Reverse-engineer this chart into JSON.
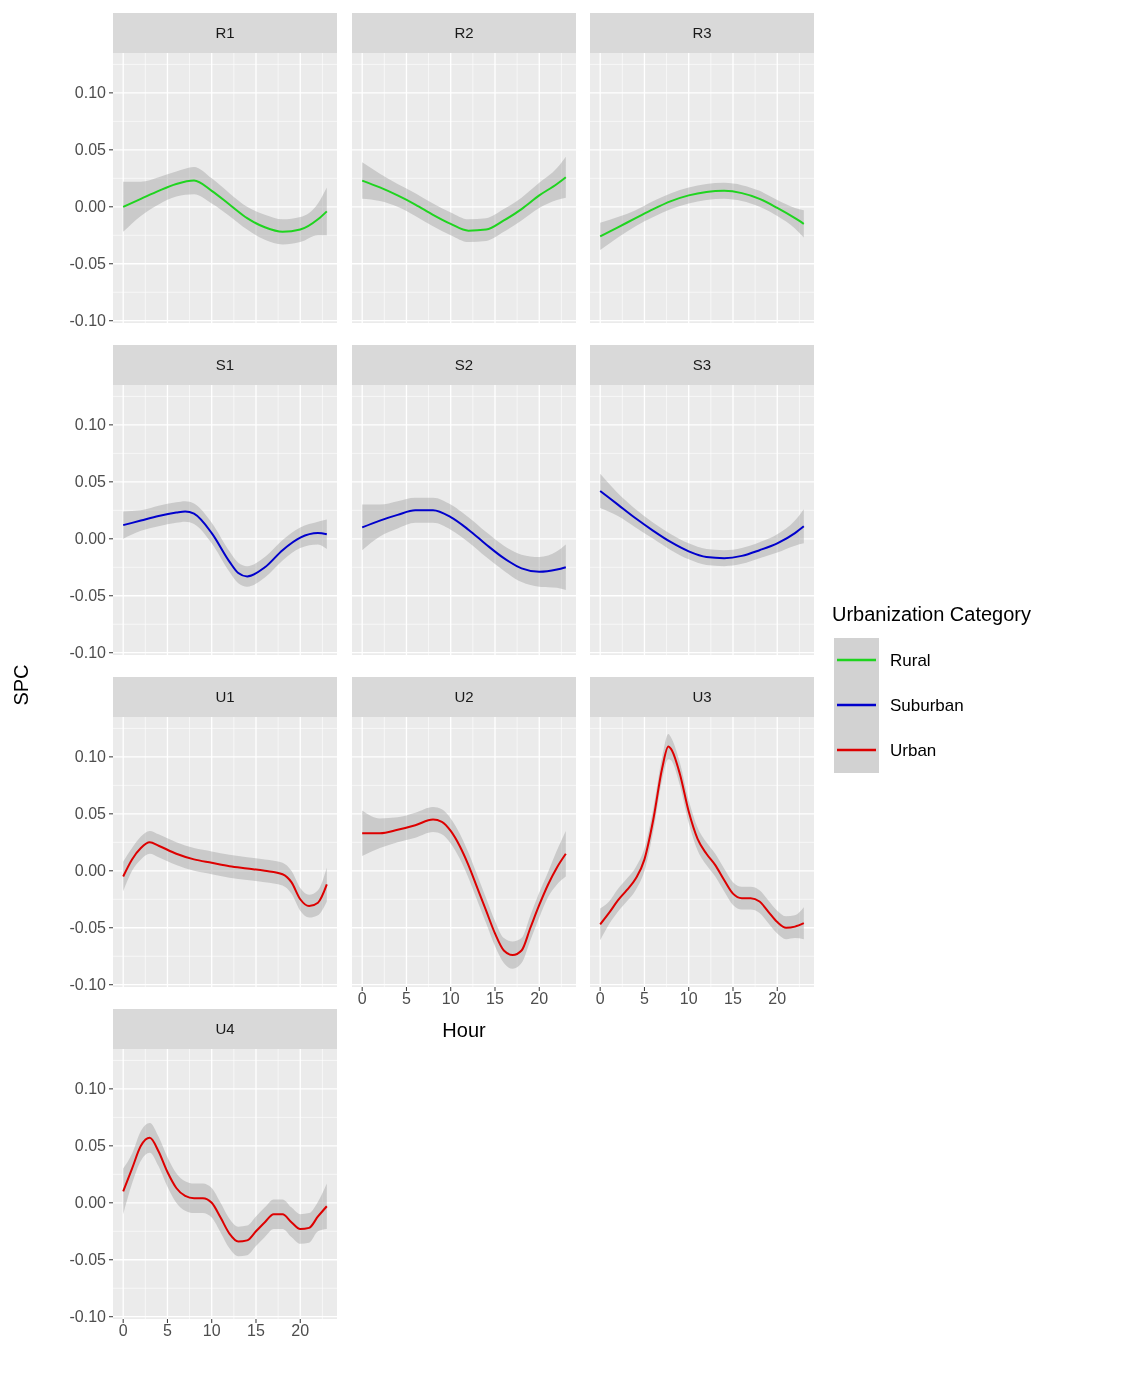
{
  "chart_data": [
    {
      "type": "line",
      "title": "R1",
      "x": [
        0,
        2,
        4,
        6,
        8,
        10,
        12,
        14,
        16,
        18,
        20,
        22,
        23
      ],
      "series": [
        {
          "name": "Rural",
          "color": "#1fd41f",
          "values": [
            0.0,
            0.007,
            0.014,
            0.02,
            0.023,
            0.014,
            0.002,
            -0.01,
            -0.018,
            -0.022,
            -0.02,
            -0.011,
            -0.004
          ],
          "lower": [
            -0.022,
            -0.008,
            0.002,
            0.009,
            0.011,
            0.003,
            -0.008,
            -0.02,
            -0.029,
            -0.033,
            -0.031,
            -0.025,
            -0.025
          ],
          "upper": [
            0.022,
            0.022,
            0.026,
            0.031,
            0.035,
            0.025,
            0.012,
            0.0,
            -0.007,
            -0.011,
            -0.009,
            0.003,
            0.017
          ]
        }
      ],
      "xlim": [
        -1.15,
        24.15
      ],
      "ylim": [
        -0.102,
        0.135
      ],
      "xticks": [
        0,
        5,
        10,
        15,
        20
      ],
      "yticks": [
        {
          "value": -0.1,
          "label": "-0.10"
        },
        {
          "value": -0.05,
          "label": "-0.05"
        },
        {
          "value": 0,
          "label": "0.00"
        },
        {
          "value": 0.05,
          "label": "0.05"
        },
        {
          "value": 0.1,
          "label": "0.10"
        }
      ],
      "grid": true,
      "tick_labels": "y"
    },
    {
      "type": "line",
      "title": "R2",
      "x": [
        0,
        2,
        4,
        6,
        8,
        10,
        12,
        14,
        16,
        18,
        20,
        22,
        23
      ],
      "series": [
        {
          "name": "Rural",
          "color": "#1fd41f",
          "values": [
            0.023,
            0.017,
            0.01,
            0.002,
            -0.007,
            -0.015,
            -0.021,
            -0.02,
            -0.012,
            -0.002,
            0.01,
            0.02,
            0.026
          ],
          "lower": [
            0.007,
            0.005,
            0.0,
            -0.008,
            -0.017,
            -0.025,
            -0.031,
            -0.03,
            -0.022,
            -0.012,
            -0.001,
            0.006,
            0.008
          ],
          "upper": [
            0.039,
            0.029,
            0.02,
            0.012,
            0.003,
            -0.005,
            -0.011,
            -0.01,
            -0.002,
            0.008,
            0.021,
            0.034,
            0.044
          ]
        }
      ],
      "xlim": [
        -1.15,
        24.15
      ],
      "ylim": [
        -0.102,
        0.135
      ],
      "xticks": [
        0,
        5,
        10,
        15,
        20
      ],
      "yticks": [
        -0.1,
        -0.05,
        0,
        0.05,
        0.1
      ],
      "grid": true,
      "tick_labels": false
    },
    {
      "type": "line",
      "title": "R3",
      "x": [
        0,
        2,
        4,
        6,
        8,
        10,
        12,
        14,
        16,
        18,
        20,
        22,
        23
      ],
      "series": [
        {
          "name": "Rural",
          "color": "#1fd41f",
          "values": [
            -0.026,
            -0.018,
            -0.01,
            -0.002,
            0.005,
            0.01,
            0.013,
            0.014,
            0.012,
            0.007,
            -0.001,
            -0.01,
            -0.015
          ],
          "lower": [
            -0.038,
            -0.027,
            -0.017,
            -0.009,
            -0.002,
            0.003,
            0.006,
            0.007,
            0.005,
            0.0,
            -0.008,
            -0.019,
            -0.027
          ],
          "upper": [
            -0.014,
            -0.009,
            -0.003,
            0.005,
            0.012,
            0.017,
            0.02,
            0.021,
            0.019,
            0.014,
            0.006,
            -0.001,
            -0.003
          ]
        }
      ],
      "xlim": [
        -1.15,
        24.15
      ],
      "ylim": [
        -0.102,
        0.135
      ],
      "xticks": [
        0,
        5,
        10,
        15,
        20
      ],
      "yticks": [
        -0.1,
        -0.05,
        0,
        0.05,
        0.1
      ],
      "grid": true,
      "tick_labels": false
    },
    {
      "type": "line",
      "title": "S1",
      "ylabel": "SPC",
      "x": [
        0,
        2,
        4,
        6,
        7,
        8,
        10,
        12,
        13,
        14,
        16,
        18,
        20,
        22,
        23
      ],
      "series": [
        {
          "name": "Suburban",
          "color": "#0000cc",
          "values": [
            0.012,
            0.016,
            0.02,
            0.023,
            0.024,
            0.022,
            0.005,
            -0.02,
            -0.03,
            -0.033,
            -0.025,
            -0.01,
            0.001,
            0.005,
            0.004
          ],
          "lower": [
            0.0,
            0.007,
            0.011,
            0.014,
            0.015,
            0.013,
            -0.004,
            -0.029,
            -0.039,
            -0.042,
            -0.034,
            -0.019,
            -0.008,
            -0.005,
            -0.009
          ],
          "upper": [
            0.024,
            0.025,
            0.029,
            0.032,
            0.033,
            0.031,
            0.014,
            -0.011,
            -0.021,
            -0.024,
            -0.016,
            -0.001,
            0.01,
            0.015,
            0.017
          ]
        }
      ],
      "xlim": [
        -1.15,
        24.15
      ],
      "ylim": [
        -0.102,
        0.135
      ],
      "xticks": [
        0,
        5,
        10,
        15,
        20
      ],
      "yticks": [
        {
          "value": -0.1,
          "label": "-0.10"
        },
        {
          "value": -0.05,
          "label": "-0.05"
        },
        {
          "value": 0,
          "label": "0.00"
        },
        {
          "value": 0.05,
          "label": "0.05"
        },
        {
          "value": 0.1,
          "label": "0.10"
        }
      ],
      "grid": true,
      "tick_labels": "y"
    },
    {
      "type": "line",
      "title": "S2",
      "x": [
        0,
        2,
        4,
        6,
        8,
        10,
        12,
        14,
        16,
        18,
        20,
        22,
        23
      ],
      "series": [
        {
          "name": "Suburban",
          "color": "#0000cc",
          "values": [
            0.01,
            0.016,
            0.021,
            0.025,
            0.025,
            0.019,
            0.008,
            -0.005,
            -0.017,
            -0.026,
            -0.029,
            -0.027,
            -0.025
          ],
          "lower": [
            -0.01,
            0.002,
            0.009,
            0.014,
            0.014,
            0.008,
            -0.003,
            -0.016,
            -0.028,
            -0.038,
            -0.042,
            -0.043,
            -0.045
          ],
          "upper": [
            0.03,
            0.03,
            0.033,
            0.036,
            0.036,
            0.03,
            0.019,
            0.006,
            -0.006,
            -0.014,
            -0.016,
            -0.011,
            -0.005
          ]
        }
      ],
      "xlim": [
        -1.15,
        24.15
      ],
      "ylim": [
        -0.102,
        0.135
      ],
      "xticks": [
        0,
        5,
        10,
        15,
        20
      ],
      "yticks": [
        -0.1,
        -0.05,
        0,
        0.05,
        0.1
      ],
      "grid": true,
      "tick_labels": false
    },
    {
      "type": "line",
      "title": "S3",
      "legend": "right",
      "legend_title": "Urbanization Category",
      "x": [
        0,
        2,
        4,
        6,
        8,
        10,
        12,
        14,
        16,
        18,
        20,
        22,
        23
      ],
      "series": [
        {
          "name": "Suburban",
          "color": "#0000cc",
          "values": [
            0.042,
            0.03,
            0.018,
            0.007,
            -0.003,
            -0.011,
            -0.016,
            -0.017,
            -0.015,
            -0.01,
            -0.004,
            0.005,
            0.011
          ],
          "lower": [
            0.027,
            0.02,
            0.01,
            0.0,
            -0.01,
            -0.018,
            -0.023,
            -0.024,
            -0.022,
            -0.017,
            -0.012,
            -0.006,
            -0.004
          ],
          "upper": [
            0.057,
            0.04,
            0.026,
            0.014,
            0.004,
            -0.004,
            -0.009,
            -0.01,
            -0.008,
            -0.003,
            0.004,
            0.016,
            0.026
          ]
        }
      ],
      "xlim": [
        -1.15,
        24.15
      ],
      "ylim": [
        -0.102,
        0.135
      ],
      "xticks": [
        0,
        5,
        10,
        15,
        20
      ],
      "yticks": [
        -0.1,
        -0.05,
        0,
        0.05,
        0.1
      ],
      "grid": true,
      "tick_labels": false
    },
    {
      "type": "line",
      "title": "U1",
      "x": [
        0,
        1,
        2,
        3,
        4,
        6,
        8,
        10,
        12,
        14,
        16,
        18,
        19,
        20,
        21,
        22,
        23
      ],
      "series": [
        {
          "name": "Urban",
          "color": "#dd0000",
          "values": [
            -0.005,
            0.01,
            0.02,
            0.025,
            0.022,
            0.015,
            0.01,
            0.007,
            0.004,
            0.002,
            0.0,
            -0.003,
            -0.01,
            -0.025,
            -0.031,
            -0.028,
            -0.012
          ],
          "lower": [
            -0.018,
            0.0,
            0.01,
            0.015,
            0.012,
            0.005,
            0.0,
            -0.003,
            -0.006,
            -0.008,
            -0.01,
            -0.013,
            -0.02,
            -0.035,
            -0.041,
            -0.039,
            -0.027
          ],
          "upper": [
            0.008,
            0.02,
            0.03,
            0.035,
            0.032,
            0.025,
            0.02,
            0.017,
            0.014,
            0.012,
            0.01,
            0.007,
            0.0,
            -0.015,
            -0.021,
            -0.017,
            0.003
          ]
        }
      ],
      "xlim": [
        -1.15,
        24.15
      ],
      "ylim": [
        -0.102,
        0.135
      ],
      "xticks": [
        0,
        5,
        10,
        15,
        20
      ],
      "yticks": [
        {
          "value": -0.1,
          "label": "-0.10"
        },
        {
          "value": -0.05,
          "label": "-0.05"
        },
        {
          "value": 0,
          "label": "0.00"
        },
        {
          "value": 0.05,
          "label": "0.05"
        },
        {
          "value": 0.1,
          "label": "0.10"
        }
      ],
      "grid": true,
      "tick_labels": "y"
    },
    {
      "type": "line",
      "title": "U2",
      "xlabel": "Hour",
      "x": [
        0,
        2,
        4,
        6,
        8,
        9,
        10,
        11,
        12,
        13,
        14,
        15,
        16,
        17,
        18,
        19,
        20,
        21,
        22,
        23
      ],
      "series": [
        {
          "name": "Urban",
          "color": "#dd0000",
          "values": [
            0.033,
            0.033,
            0.036,
            0.04,
            0.045,
            0.043,
            0.035,
            0.022,
            0.005,
            -0.015,
            -0.035,
            -0.055,
            -0.07,
            -0.074,
            -0.07,
            -0.05,
            -0.03,
            -0.012,
            0.003,
            0.015
          ],
          "lower": [
            0.013,
            0.02,
            0.025,
            0.029,
            0.034,
            0.032,
            0.024,
            0.011,
            -0.006,
            -0.026,
            -0.046,
            -0.066,
            -0.081,
            -0.086,
            -0.081,
            -0.061,
            -0.041,
            -0.023,
            -0.012,
            -0.005
          ],
          "upper": [
            0.053,
            0.046,
            0.047,
            0.051,
            0.056,
            0.054,
            0.046,
            0.033,
            0.016,
            -0.004,
            -0.024,
            -0.044,
            -0.059,
            -0.062,
            -0.059,
            -0.039,
            -0.019,
            -0.001,
            0.018,
            0.035
          ]
        }
      ],
      "xlim": [
        -1.15,
        24.15
      ],
      "ylim": [
        -0.102,
        0.135
      ],
      "xticks": [
        0,
        5,
        10,
        15,
        20
      ],
      "yticks": [
        -0.1,
        -0.05,
        0,
        0.05,
        0.1
      ],
      "grid": true,
      "tick_labels": "x"
    },
    {
      "type": "line",
      "title": "U3",
      "x": [
        0,
        1,
        2,
        3,
        4,
        5,
        6,
        7,
        7.7,
        8,
        9,
        10,
        11,
        12,
        13,
        14,
        15,
        16,
        17,
        18,
        19,
        20,
        21,
        22,
        23
      ],
      "series": [
        {
          "name": "Urban",
          "color": "#dd0000",
          "values": [
            -0.047,
            -0.037,
            -0.026,
            -0.017,
            -0.007,
            0.01,
            0.045,
            0.09,
            0.109,
            0.107,
            0.085,
            0.052,
            0.028,
            0.015,
            0.005,
            -0.008,
            -0.02,
            -0.024,
            -0.024,
            -0.027,
            -0.036,
            -0.045,
            -0.05,
            -0.049,
            -0.046
          ],
          "lower": [
            -0.061,
            -0.047,
            -0.036,
            -0.027,
            -0.017,
            0.0,
            0.035,
            0.08,
            0.098,
            0.097,
            0.075,
            0.042,
            0.018,
            0.005,
            -0.005,
            -0.018,
            -0.03,
            -0.034,
            -0.034,
            -0.037,
            -0.046,
            -0.055,
            -0.06,
            -0.059,
            -0.06
          ],
          "upper": [
            -0.033,
            -0.027,
            -0.016,
            -0.007,
            0.003,
            0.02,
            0.055,
            0.1,
            0.12,
            0.117,
            0.095,
            0.062,
            0.038,
            0.025,
            0.015,
            0.002,
            -0.01,
            -0.014,
            -0.014,
            -0.017,
            -0.026,
            -0.035,
            -0.04,
            -0.039,
            -0.032
          ]
        }
      ],
      "xlim": [
        -1.15,
        24.15
      ],
      "ylim": [
        -0.102,
        0.135
      ],
      "xticks": [
        0,
        5,
        10,
        15,
        20
      ],
      "yticks": [
        -0.1,
        -0.05,
        0,
        0.05,
        0.1
      ],
      "grid": true,
      "tick_labels": "x"
    },
    {
      "type": "line",
      "title": "U4",
      "x": [
        0,
        1,
        2,
        3,
        4,
        5,
        6,
        7,
        8,
        9,
        10,
        11,
        12,
        13,
        14,
        15,
        16,
        17,
        18,
        19,
        20,
        21,
        22,
        23
      ],
      "series": [
        {
          "name": "Urban",
          "color": "#dd0000",
          "values": [
            0.01,
            0.03,
            0.05,
            0.057,
            0.045,
            0.027,
            0.013,
            0.006,
            0.004,
            0.004,
            0.0,
            -0.013,
            -0.027,
            -0.034,
            -0.033,
            -0.025,
            -0.017,
            -0.01,
            -0.01,
            -0.017,
            -0.023,
            -0.022,
            -0.012,
            -0.003
          ],
          "lower": [
            -0.01,
            0.017,
            0.037,
            0.044,
            0.032,
            0.014,
            0.0,
            -0.007,
            -0.009,
            -0.009,
            -0.013,
            -0.026,
            -0.04,
            -0.047,
            -0.046,
            -0.038,
            -0.03,
            -0.023,
            -0.023,
            -0.03,
            -0.036,
            -0.035,
            -0.025,
            -0.023
          ],
          "upper": [
            0.03,
            0.043,
            0.063,
            0.07,
            0.058,
            0.04,
            0.026,
            0.019,
            0.017,
            0.017,
            0.013,
            0.0,
            -0.014,
            -0.021,
            -0.02,
            -0.012,
            -0.004,
            0.003,
            0.003,
            -0.004,
            -0.01,
            -0.009,
            0.001,
            0.017
          ]
        }
      ],
      "xlim": [
        -1.15,
        24.15
      ],
      "ylim": [
        -0.102,
        0.135
      ],
      "xticks": [
        0,
        5,
        10,
        15,
        20
      ],
      "yticks": [
        {
          "value": -0.1,
          "label": "-0.10"
        },
        {
          "value": -0.05,
          "label": "-0.05"
        },
        {
          "value": 0,
          "label": "0.00"
        },
        {
          "value": 0.05,
          "label": "0.05"
        },
        {
          "value": 0.1,
          "label": "0.10"
        }
      ],
      "grid": true
    }
  ]
}
